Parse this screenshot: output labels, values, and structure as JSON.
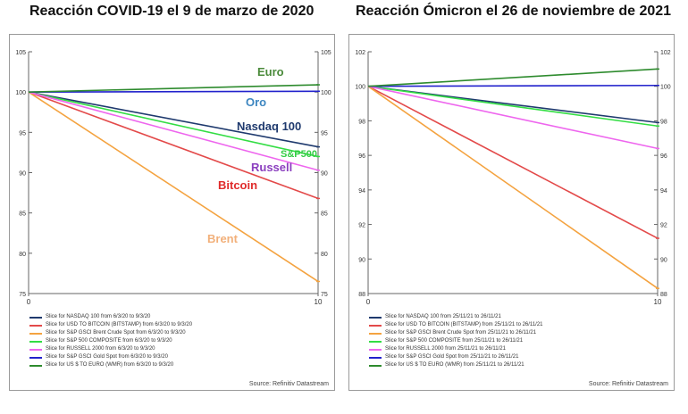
{
  "titles": {
    "left": "Reacción COVID-19 el 9 de marzo de 2020",
    "right": "Reacción Ómicron el 26 de noviembre de 2021"
  },
  "chart_data": [
    {
      "type": "line",
      "title": "Reacción COVID-19 el 9 de marzo de 2020",
      "x": [
        0,
        10
      ],
      "xticks": [
        0,
        10
      ],
      "ylim": [
        75,
        105
      ],
      "yticks": [
        75,
        80,
        85,
        90,
        95,
        100,
        105
      ],
      "series": [
        {
          "name": "Slice for NASDAQ 100 from 6/3/20 to 9/3/20",
          "label": "Nasdaq 100",
          "color": "#1f3a6e",
          "values": [
            100,
            93.2
          ]
        },
        {
          "name": "Slice for USD TO BITCOIN (BITSTAMP) from 6/3/20 to 9/3/20",
          "label": "Bitcoin",
          "color": "#e34a4a",
          "values": [
            100,
            86.8
          ]
        },
        {
          "name": "Slice for S&P GSCI Brent Crude Spot from 6/3/20 to 9/3/20",
          "label": "Brent",
          "color": "#f4a340",
          "values": [
            100,
            76.5
          ]
        },
        {
          "name": "Slice for S&P 500 COMPOSITE from 6/3/20 to 9/3/20",
          "label": "S&P500",
          "color": "#33dd44",
          "values": [
            100,
            92.0
          ]
        },
        {
          "name": "Slice for RUSSELL 2000 from 6/3/20 to 9/3/20",
          "label": "Russell",
          "color": "#ee66ee",
          "values": [
            100,
            90.3
          ]
        },
        {
          "name": "Slice for S&P GSCI Gold Spot from 6/3/20 to 9/3/20",
          "label": "Oro",
          "color": "#2222cc",
          "values": [
            100,
            100.1
          ]
        },
        {
          "name": "Slice for US $ TO EURO (WMR) from 6/3/20 to 9/3/20",
          "label": "Euro",
          "color": "#2e8b2e",
          "values": [
            100,
            100.9
          ]
        }
      ],
      "annotations": [
        {
          "text": "Euro",
          "color": "#4a8a3a"
        },
        {
          "text": "Oro",
          "color": "#3d86c0"
        },
        {
          "text": "Nasdaq 100",
          "color": "#1f3a6e"
        },
        {
          "text": "S&P500",
          "color": "#33cc44"
        },
        {
          "text": "Russell",
          "color": "#8b3fbf"
        },
        {
          "text": "Bitcoin",
          "color": "#e02b2b"
        },
        {
          "text": "Brent",
          "color": "#f2b07a"
        }
      ],
      "source": "Source: Refinitiv Datastream"
    },
    {
      "type": "line",
      "title": "Reacción Ómicron el 26 de noviembre de 2021",
      "x": [
        0,
        10
      ],
      "xticks": [
        0,
        10
      ],
      "ylim": [
        88,
        102
      ],
      "yticks": [
        88,
        90,
        92,
        94,
        96,
        98,
        100,
        102
      ],
      "series": [
        {
          "name": "Slice for NASDAQ 100 from 25/11/21 to 26/11/21",
          "color": "#1f3a6e",
          "values": [
            100,
            97.9
          ]
        },
        {
          "name": "Slice for USD TO BITCOIN (BITSTAMP) from 25/11/21 to 26/11/21",
          "color": "#e34a4a",
          "values": [
            100,
            91.2
          ]
        },
        {
          "name": "Slice for S&P GSCI Brent Crude Spot from 25/11/21 to 26/11/21",
          "color": "#f4a340",
          "values": [
            100,
            88.3
          ]
        },
        {
          "name": "Slice for S&P 500 COMPOSITE from 25/11/21 to 26/11/21",
          "color": "#33dd44",
          "values": [
            100,
            97.7
          ]
        },
        {
          "name": "Slice for RUSSELL 2000 from 25/11/21 to 26/11/21",
          "color": "#ee66ee",
          "values": [
            100,
            96.4
          ]
        },
        {
          "name": "Slice for S&P GSCI Gold Spot from 25/11/21 to 26/11/21",
          "color": "#2222cc",
          "values": [
            100,
            100.05
          ]
        },
        {
          "name": "Slice for US $ TO EURO (WMR) from 25/11/21 to 26/11/21",
          "color": "#2e8b2e",
          "values": [
            100,
            101.0
          ]
        }
      ],
      "annotations": [],
      "source": "Source: Refinitiv Datastream"
    }
  ]
}
